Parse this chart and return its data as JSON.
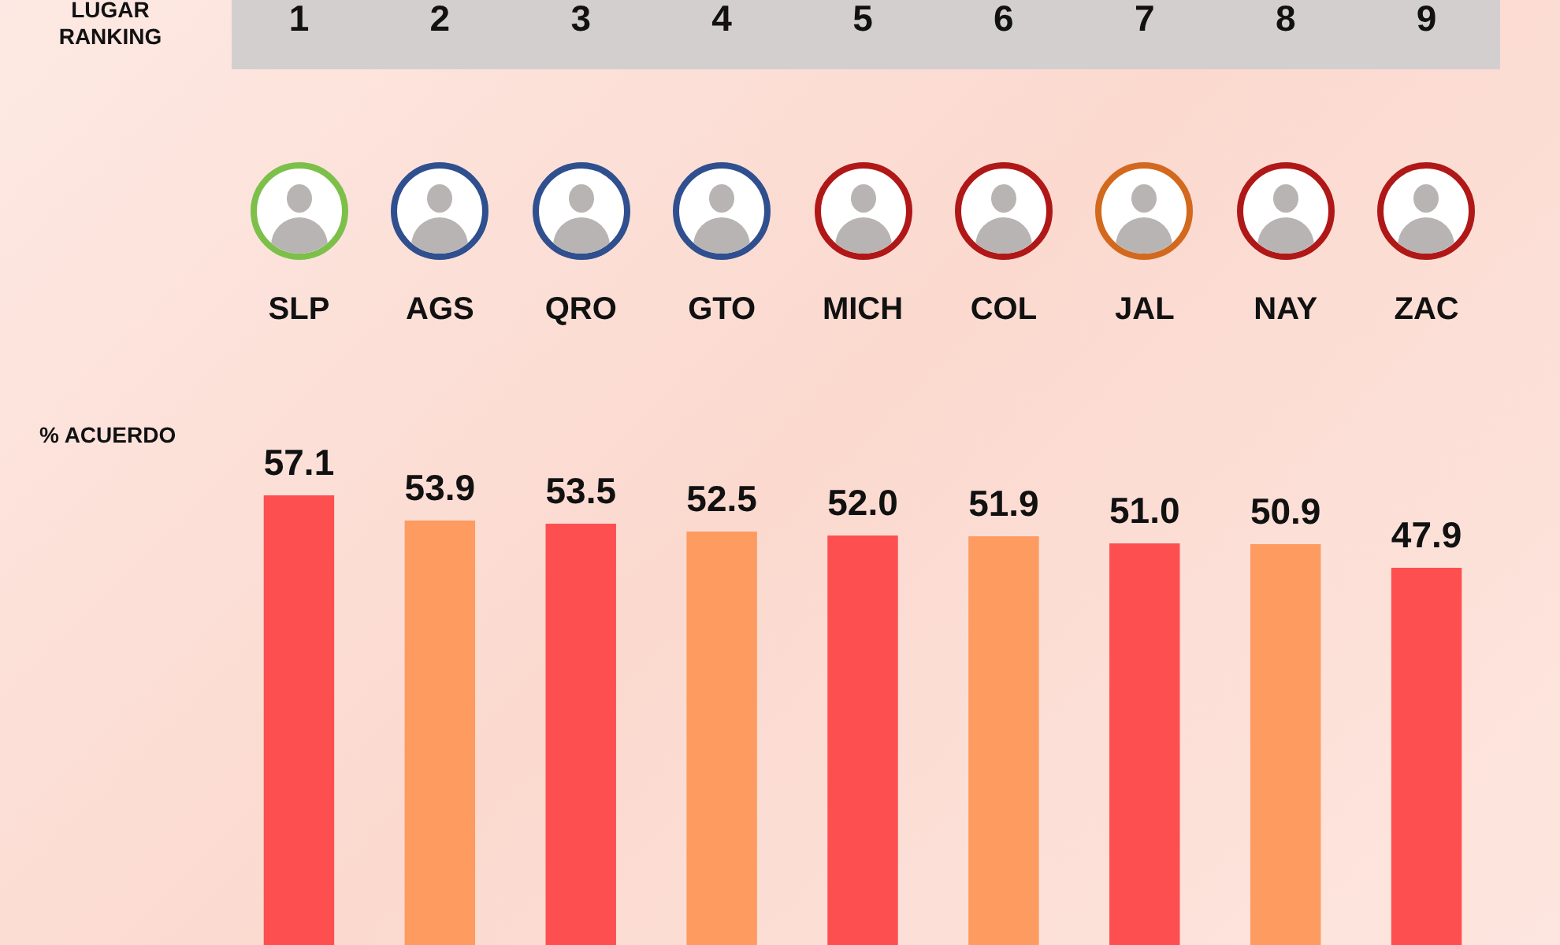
{
  "chart_data": {
    "type": "bar",
    "ylabel": "% ACUERDO",
    "categories": [
      "SLP",
      "AGS",
      "QRO",
      "GTO",
      "MICH",
      "COL",
      "JAL",
      "NAY",
      "ZAC"
    ],
    "values": [
      57.1,
      53.9,
      53.5,
      52.5,
      52.0,
      51.9,
      51.0,
      50.9,
      47.9
    ],
    "value_labels": [
      "57.1",
      "53.9",
      "53.5",
      "52.5",
      "52.0",
      "51.9",
      "51.0",
      "50.9",
      "47.9"
    ],
    "colors": [
      "#fd4f50",
      "#fd9b60",
      "#fd4f50",
      "#fd9b60",
      "#fd4f50",
      "#fd9b60",
      "#fd4f50",
      "#fd9b60",
      "#fd4f50"
    ],
    "legend": false,
    "annotations": [
      "LUGAR\nRANKING",
      "1",
      "2",
      "3",
      "4",
      "5",
      "6",
      "7",
      "8",
      "9"
    ]
  }
}
